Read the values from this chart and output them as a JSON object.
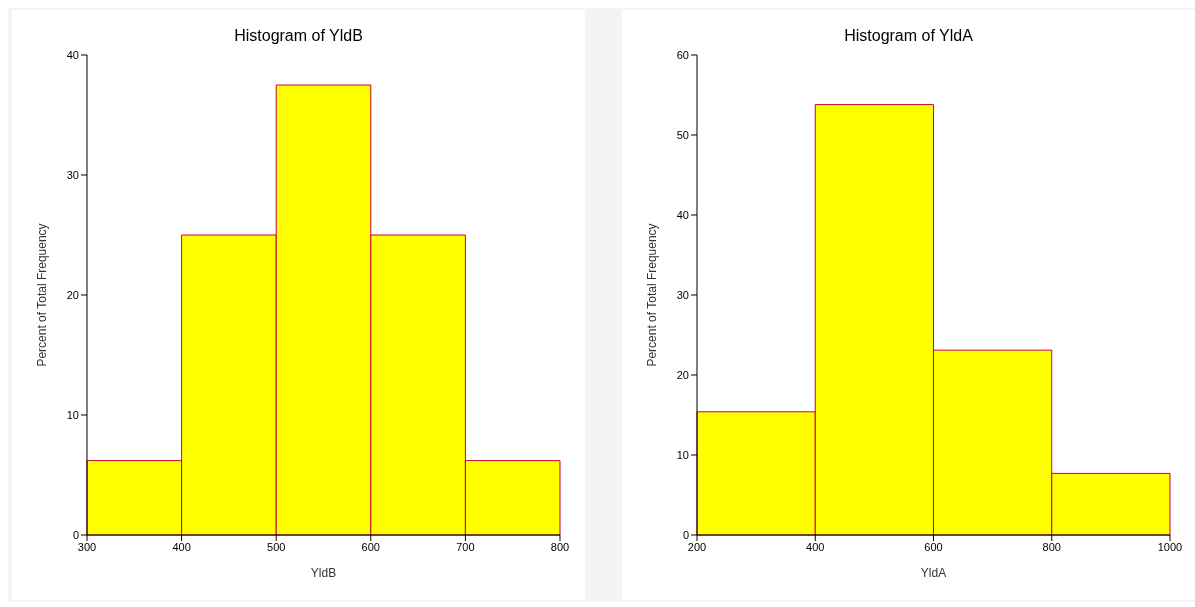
{
  "chart_data": [
    {
      "type": "histogram",
      "title": "Histogram of YldB",
      "xlabel": "YldB",
      "ylabel": "Percent of Total Frequency",
      "bins": [
        300,
        400,
        500,
        600,
        700,
        800
      ],
      "values": [
        6.2,
        25,
        37.5,
        25,
        6.2
      ],
      "color": "#ffff00",
      "xlim": [
        300,
        800
      ],
      "xticks": [
        300,
        400,
        500,
        600,
        700,
        800
      ],
      "ylim": [
        0,
        40
      ],
      "yticks": [
        0,
        10,
        20,
        30,
        40
      ]
    },
    {
      "type": "histogram",
      "title": "Histogram of YldA",
      "xlabel": "YldA",
      "ylabel": "Percent of Total Frequency",
      "bins": [
        200,
        400,
        600,
        800,
        1000
      ],
      "values": [
        15.4,
        53.8,
        23.1,
        7.7
      ],
      "color": "#ffff00",
      "xlim": [
        200,
        1000
      ],
      "xticks": [
        200,
        400,
        600,
        800,
        1000
      ],
      "ylim": [
        0,
        60
      ],
      "yticks": [
        0,
        10,
        20,
        30,
        40,
        50,
        60
      ]
    }
  ]
}
